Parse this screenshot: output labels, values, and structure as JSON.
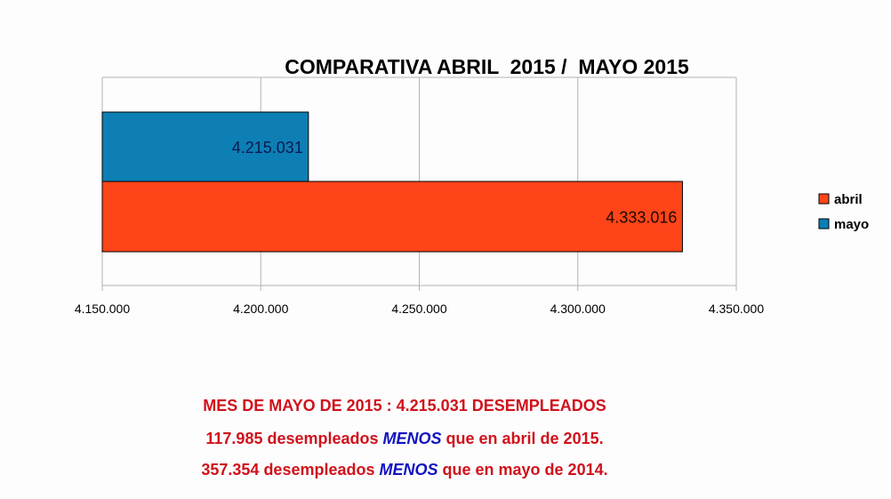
{
  "chart_data": {
    "type": "bar",
    "orientation": "horizontal",
    "title": "COMPARATIVA ABRIL  2015 /  MAYO 2015",
    "categories": [
      ""
    ],
    "series": [
      {
        "name": "mayo",
        "values": [
          4215031
        ],
        "label": "4.215.031",
        "color": "#0d7fb5"
      },
      {
        "name": "abril",
        "values": [
          4333016
        ],
        "label": "4.333.016",
        "color": "#ff4419"
      }
    ],
    "xlim": [
      4150000,
      4350000
    ],
    "xticks": [
      4150000,
      4200000,
      4250000,
      4300000,
      4350000
    ],
    "xtick_labels": [
      "4.150.000",
      "4.200.000",
      "4.250.000",
      "4.300.000",
      "4.350.000"
    ],
    "grid": true,
    "legend": {
      "placement": "right",
      "entries": [
        "abril",
        "mayo"
      ]
    },
    "xlabel": "",
    "ylabel": ""
  },
  "notes": {
    "line1": "MES DE MAYO DE 2015 : 4.215.031 DESEMPLEADOS",
    "line2_pre": "117.985 desempleados ",
    "line2_em": "MENOS",
    "line2_post": " que en abril de 2015.",
    "line3_pre": "357.354 desempleados ",
    "line3_em": "MENOS",
    "line3_post": " que en mayo de 2014."
  }
}
